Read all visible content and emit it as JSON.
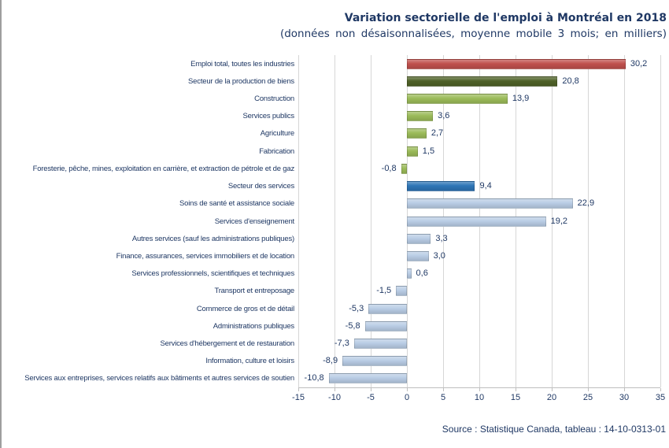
{
  "source": "Source : Statistique Canada, tableau : 14-10-0313-01",
  "colors": {
    "text": "#1F3864",
    "grid": "#D6D6D6",
    "axis": "#BFBFBF",
    "frame_border": "#9E9E9E",
    "total_red": "#C0504D",
    "goods_sector_dark_green": "#4F6228",
    "goods_industry_light_green": "#9BBB59",
    "services_sector_blue": "#2E75B6",
    "services_industry_light_blue": "#B9CDE5"
  },
  "chart_data": {
    "type": "bar",
    "orientation": "horizontal",
    "title": "Variation sectorielle de l'emploi à Montréal en 2018",
    "subtitle": "(données non désaisonnalisées, moyenne mobile 3 mois; en milliers)",
    "xlabel": "",
    "ylabel": "",
    "xlim": [
      -15,
      35
    ],
    "grid": true,
    "x_ticks": [
      -15,
      -10,
      -5,
      0,
      5,
      10,
      15,
      20,
      25,
      30,
      35
    ],
    "bars": [
      {
        "label": "Emploi total, toutes les industries",
        "value": 30.2,
        "display": "30,2",
        "color": "#C0504D"
      },
      {
        "label": "Secteur de la production de biens",
        "value": 20.8,
        "display": "20,8",
        "color": "#4F6228"
      },
      {
        "label": "Construction",
        "value": 13.9,
        "display": "13,9",
        "color": "#9BBB59"
      },
      {
        "label": "Services publics",
        "value": 3.6,
        "display": "3,6",
        "color": "#9BBB59"
      },
      {
        "label": "Agriculture",
        "value": 2.7,
        "display": "2,7",
        "color": "#9BBB59"
      },
      {
        "label": "Fabrication",
        "value": 1.5,
        "display": "1,5",
        "color": "#9BBB59"
      },
      {
        "label": "Foresterie, pêche, mines, exploitation en carrière, et extraction de pétrole et de gaz",
        "value": -0.8,
        "display": "-0,8",
        "color": "#9BBB59"
      },
      {
        "label": "Secteur des services",
        "value": 9.4,
        "display": "9,4",
        "color": "#2E75B6"
      },
      {
        "label": "Soins de santé et assistance sociale",
        "value": 22.9,
        "display": "22,9",
        "color": "#B9CDE5"
      },
      {
        "label": "Services d'enseignement",
        "value": 19.2,
        "display": "19,2",
        "color": "#B9CDE5"
      },
      {
        "label": "Autres services (sauf les administrations publiques)",
        "value": 3.3,
        "display": "3,3",
        "color": "#B9CDE5"
      },
      {
        "label": "Finance, assurances, services immobiliers et de location",
        "value": 3.0,
        "display": "3,0",
        "color": "#B9CDE5"
      },
      {
        "label": "Services professionnels, scientifiques et techniques",
        "value": 0.6,
        "display": "0,6",
        "color": "#B9CDE5"
      },
      {
        "label": "Transport et entreposage",
        "value": -1.5,
        "display": "-1,5",
        "color": "#B9CDE5"
      },
      {
        "label": "Commerce de gros et de détail",
        "value": -5.3,
        "display": "-5,3",
        "color": "#B9CDE5"
      },
      {
        "label": "Administrations publiques",
        "value": -5.8,
        "display": "-5,8",
        "color": "#B9CDE5"
      },
      {
        "label": "Services d'hébergement et de restauration",
        "value": -7.3,
        "display": "-7,3",
        "color": "#B9CDE5"
      },
      {
        "label": "Information, culture et loisirs",
        "value": -8.9,
        "display": "-8,9",
        "color": "#B9CDE5"
      },
      {
        "label": "Services aux entreprises, services relatifs aux bâtiments et autres services de soutien",
        "value": -10.8,
        "display": "-10,8",
        "color": "#B9CDE5"
      }
    ]
  }
}
